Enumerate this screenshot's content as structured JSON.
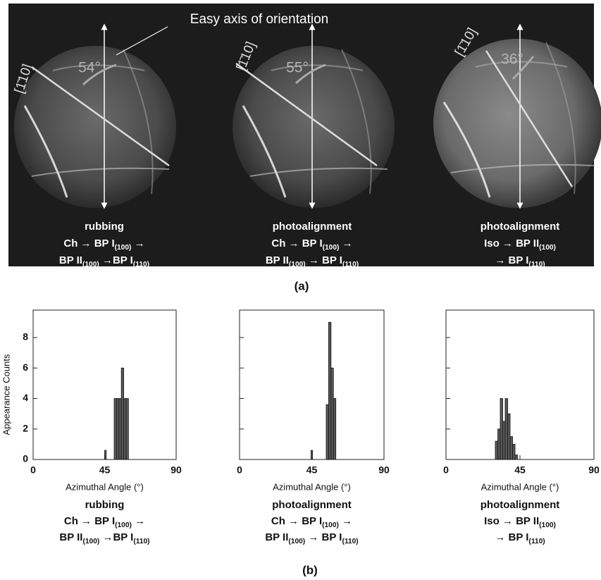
{
  "panel_a": {
    "axis_label": "Easy axis of orientation",
    "label": "(a)",
    "images": [
      {
        "direction": "[1̄10]",
        "angle": "54°",
        "caption": [
          [
            "rubbing"
          ],
          [
            "Ch → BP I",
            "(100)",
            " →"
          ],
          [
            "BP II",
            "(100)",
            " →BP I",
            "(110)"
          ]
        ]
      },
      {
        "direction": "[1̄10]",
        "angle": "55°",
        "caption": [
          [
            "photoalignment"
          ],
          [
            "Ch → BP I",
            "(100)",
            " →"
          ],
          [
            "BP II",
            "(100)",
            " → BP I",
            "(110)"
          ]
        ]
      },
      {
        "direction": "[1̄10]",
        "angle": "36°",
        "caption": [
          [
            "photoalignment"
          ],
          [
            "Iso → BP II",
            "(100)"
          ],
          [
            "→ BP I",
            "(110)"
          ]
        ]
      }
    ]
  },
  "panel_b_label": "(b)",
  "chart_data": [
    {
      "type": "histogram",
      "bins": [
        45,
        46,
        51,
        52.5,
        54,
        55.5,
        57,
        58.5,
        60
      ],
      "values": [
        0.6,
        0,
        4,
        4,
        4,
        6,
        4,
        4
      ],
      "color": "#5a5a5a",
      "xlim": [
        0,
        90
      ],
      "xticks": [
        0,
        45,
        90
      ],
      "ylim": [
        0,
        9.8
      ],
      "yticks": [
        0,
        2,
        4,
        6,
        8
      ],
      "ytick_labels": true,
      "xlabel": "Azimuthal Angle (°)",
      "ylabel": "Appearance Counts",
      "caption": [
        [
          "rubbing"
        ],
        [
          "Ch → BP I",
          "(100)",
          " →"
        ],
        [
          "BP II",
          "(100)",
          " →BP I",
          "(110)"
        ]
      ]
    },
    {
      "type": "histogram",
      "bins": [
        44.5,
        45.5,
        54,
        55.5,
        57,
        58.5,
        60
      ],
      "values": [
        0.6,
        0,
        3.6,
        9,
        6,
        4
      ],
      "color": "#5a5a5a",
      "xlim": [
        0,
        90
      ],
      "xticks": [
        0,
        45,
        90
      ],
      "ylim": [
        0,
        9.8
      ],
      "yticks": [
        0,
        2,
        4,
        6,
        8
      ],
      "ytick_labels": false,
      "xlabel": "Azimuthal Angle (°)",
      "caption": [
        [
          "photoalignment"
        ],
        [
          "Ch → BP I",
          "(100)",
          " →"
        ],
        [
          "BP II",
          "(100)",
          " → BP I",
          "(110)"
        ]
      ]
    },
    {
      "type": "histogram",
      "bins": [
        30,
        31.5,
        33,
        34.5,
        36,
        37.5,
        39,
        40.5,
        42,
        43.5
      ],
      "values": [
        1.2,
        2,
        4,
        2.5,
        4,
        3,
        1.5,
        1,
        0.3
      ],
      "color": "#5a5a5a",
      "xlim": [
        0,
        90
      ],
      "xticks": [
        0,
        45,
        90
      ],
      "ylim": [
        0,
        9.8
      ],
      "yticks": [
        0,
        2,
        4,
        6,
        8
      ],
      "ytick_labels": false,
      "xlabel": "Azimuthal Angle (°)",
      "caption": [
        [
          "photoalignment"
        ],
        [
          "Iso → BP II",
          "(100)"
        ],
        [
          "→ BP I",
          "(110)"
        ]
      ]
    }
  ]
}
